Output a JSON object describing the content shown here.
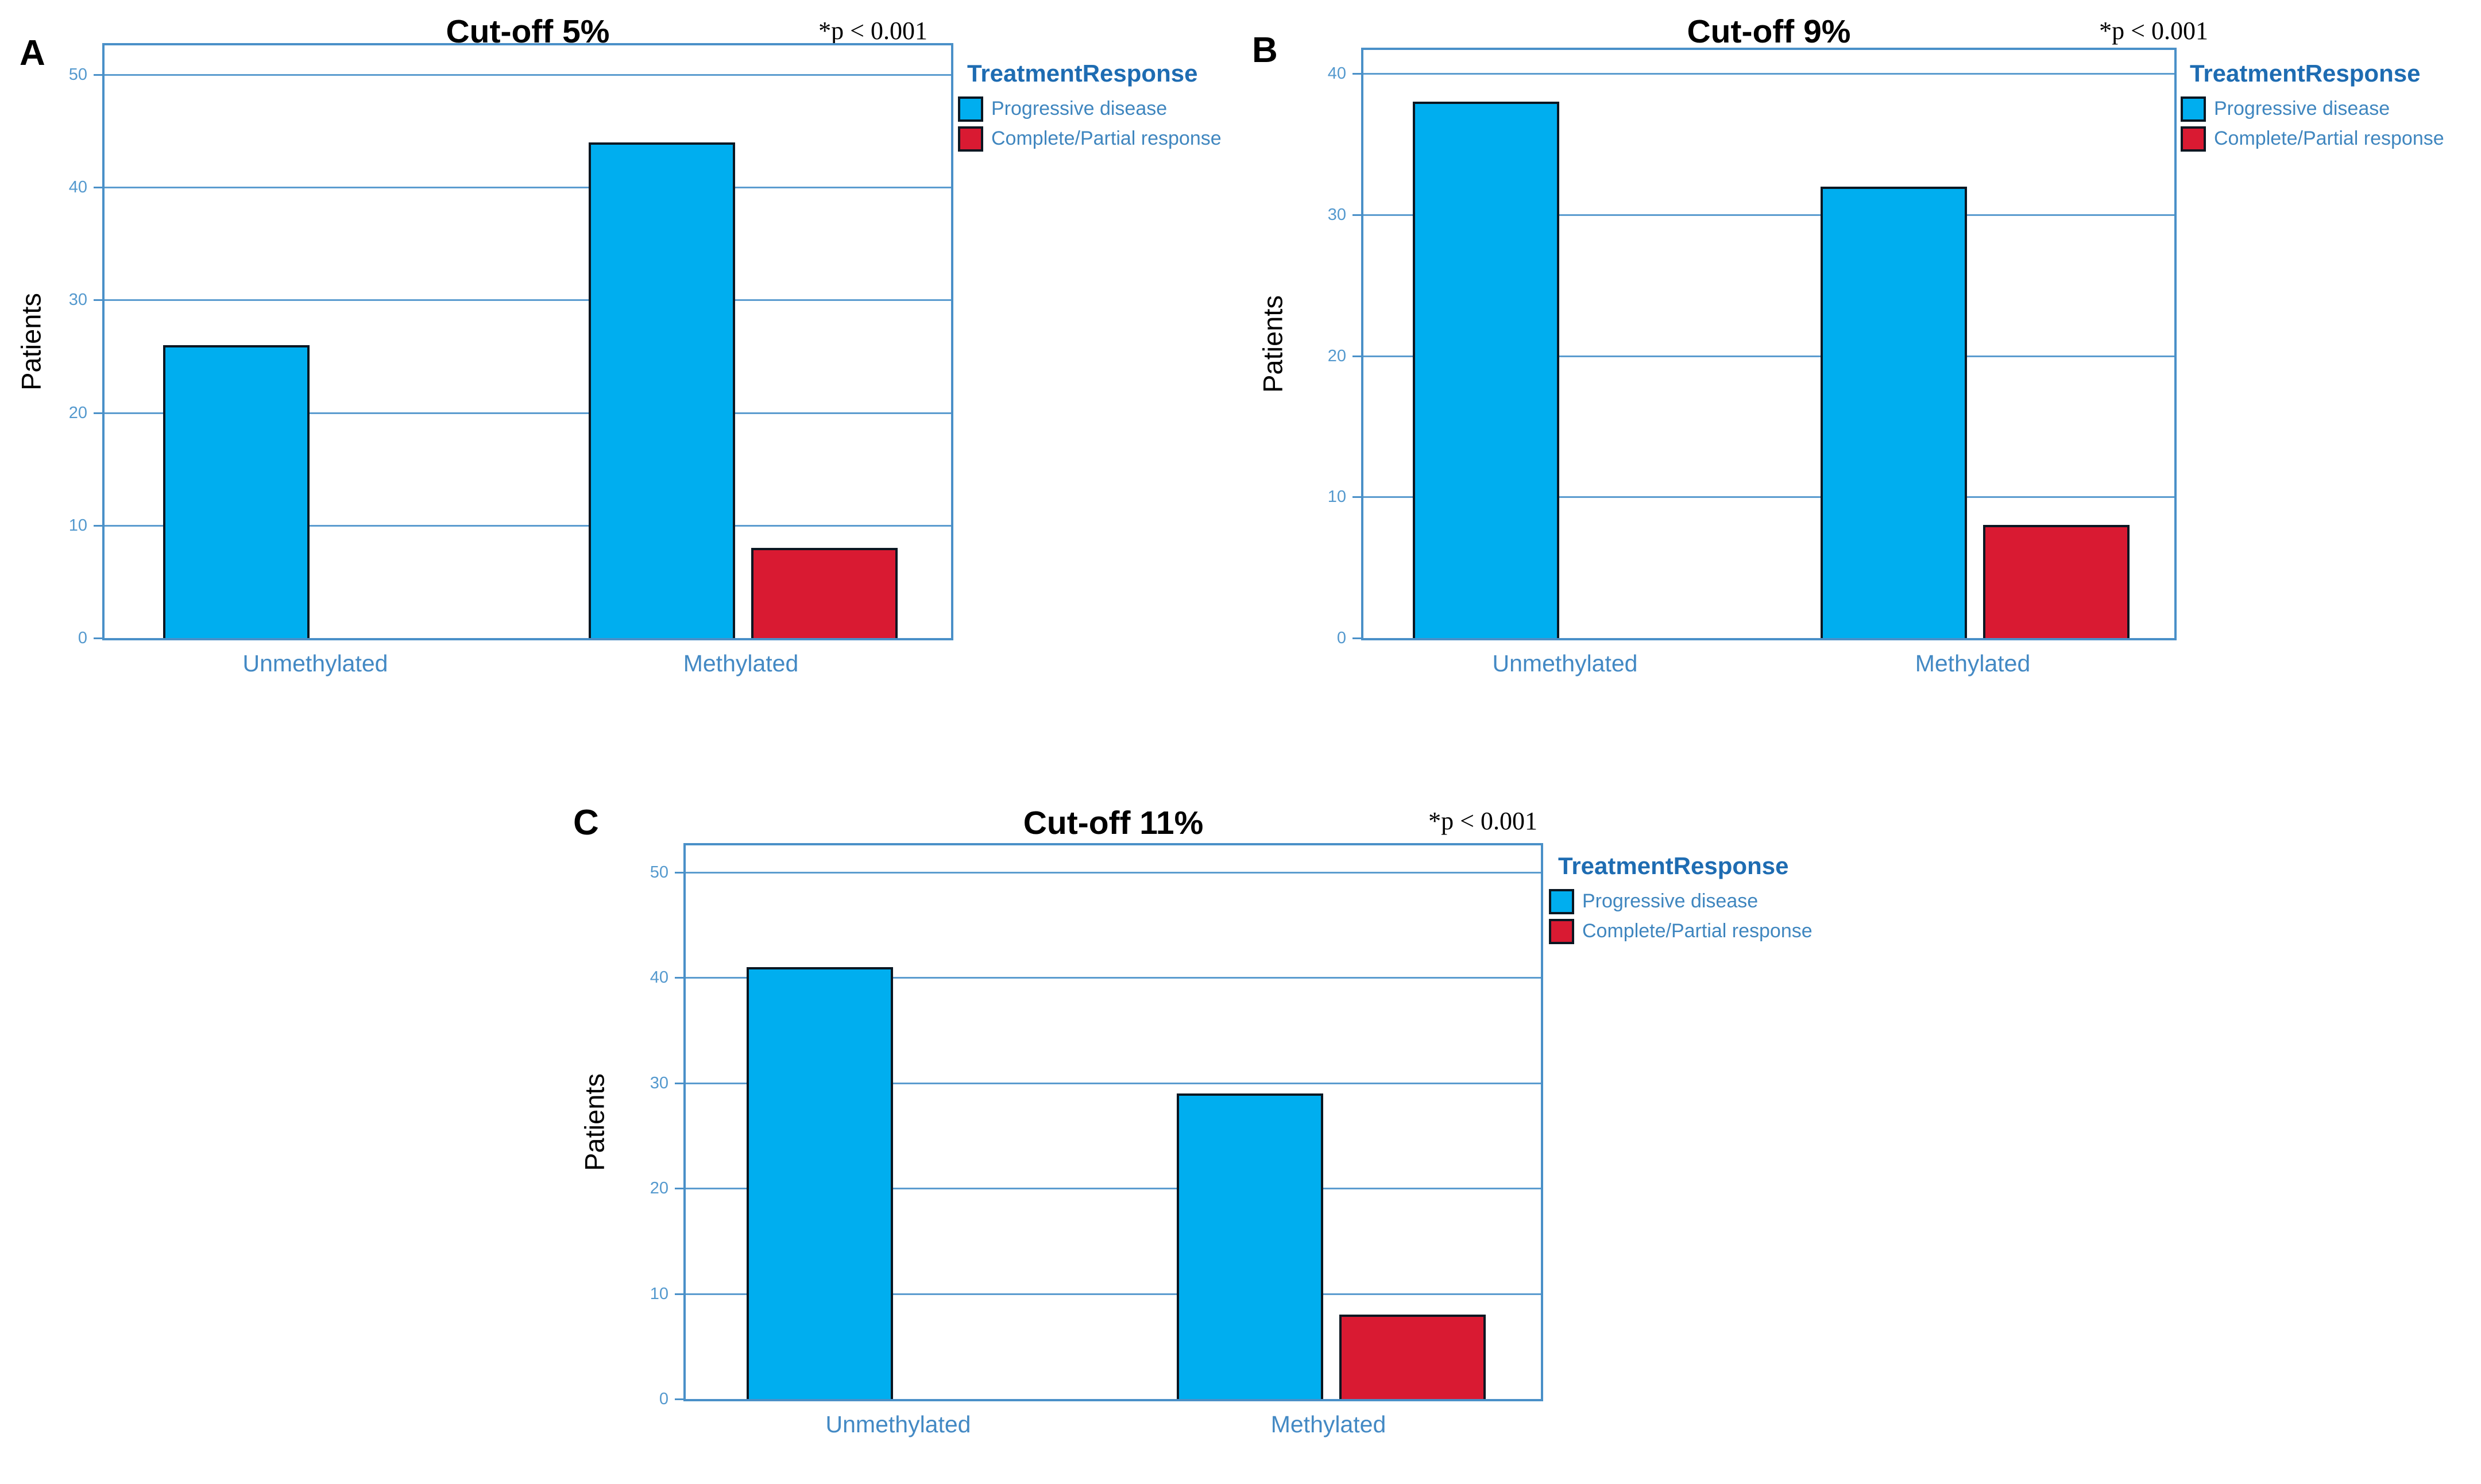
{
  "figure": {
    "background": "#ffffff",
    "description": "Three clustered bar charts comparing treatment response by MGMT methylation status at different cut-offs"
  },
  "colors": {
    "bar_blue": "#00AEEF",
    "bar_red": "#D91A32",
    "bar_border": "#0B1722",
    "axis_frame": "#4A90C8",
    "gridline": "#5B9CCF",
    "tick_label": "#5499CE",
    "category_label": "#4389C4",
    "legend_title": "#1E6CB2",
    "legend_text": "#3F86BF",
    "title_text": "#000000"
  },
  "legend": {
    "title": "TreatmentResponse",
    "position": "right-top",
    "items": [
      {
        "label": "Progressive disease",
        "color": "#00AEEF"
      },
      {
        "label": "Complete/Partial response",
        "color": "#D91A32"
      }
    ]
  },
  "chart_data": [
    {
      "panel_letter": "A",
      "type": "bar",
      "title": "Cut-off 5%",
      "annotation": "*p < 0.001",
      "ylabel": "Patients",
      "xlabel": "",
      "categories": [
        "Unmethylated",
        "Methylated"
      ],
      "series": [
        {
          "name": "Progressive disease",
          "color": "#00AEEF",
          "values": [
            26,
            44
          ]
        },
        {
          "name": "Complete/Partial response",
          "color": "#D91A32",
          "values": [
            0,
            8
          ]
        }
      ],
      "yticks": [
        0,
        10,
        20,
        30,
        40,
        50
      ],
      "ylim": [
        0,
        53
      ],
      "grid": true,
      "legend_position": "right-top"
    },
    {
      "panel_letter": "B",
      "type": "bar",
      "title": "Cut-off 9%",
      "annotation": "*p < 0.001",
      "ylabel": "Patients",
      "xlabel": "",
      "categories": [
        "Unmethylated",
        "Methylated"
      ],
      "series": [
        {
          "name": "Progressive disease",
          "color": "#00AEEF",
          "values": [
            38,
            32
          ]
        },
        {
          "name": "Complete/Partial response",
          "color": "#D91A32",
          "values": [
            0,
            8
          ]
        }
      ],
      "yticks": [
        0,
        10,
        20,
        30,
        40
      ],
      "ylim": [
        0,
        42
      ],
      "grid": true,
      "legend_position": "right-top"
    },
    {
      "panel_letter": "C",
      "type": "bar",
      "title": "Cut-off 11%",
      "annotation": "*p < 0.001",
      "ylabel": "Patients",
      "xlabel": "",
      "categories": [
        "Unmethylated",
        "Methylated"
      ],
      "series": [
        {
          "name": "Progressive disease",
          "color": "#00AEEF",
          "values": [
            41,
            29
          ]
        },
        {
          "name": "Complete/Partial response",
          "color": "#D91A32",
          "values": [
            0,
            8
          ]
        }
      ],
      "yticks": [
        0,
        10,
        20,
        30,
        40,
        50
      ],
      "ylim": [
        0,
        53
      ],
      "grid": true,
      "legend_position": "right-top"
    }
  ]
}
